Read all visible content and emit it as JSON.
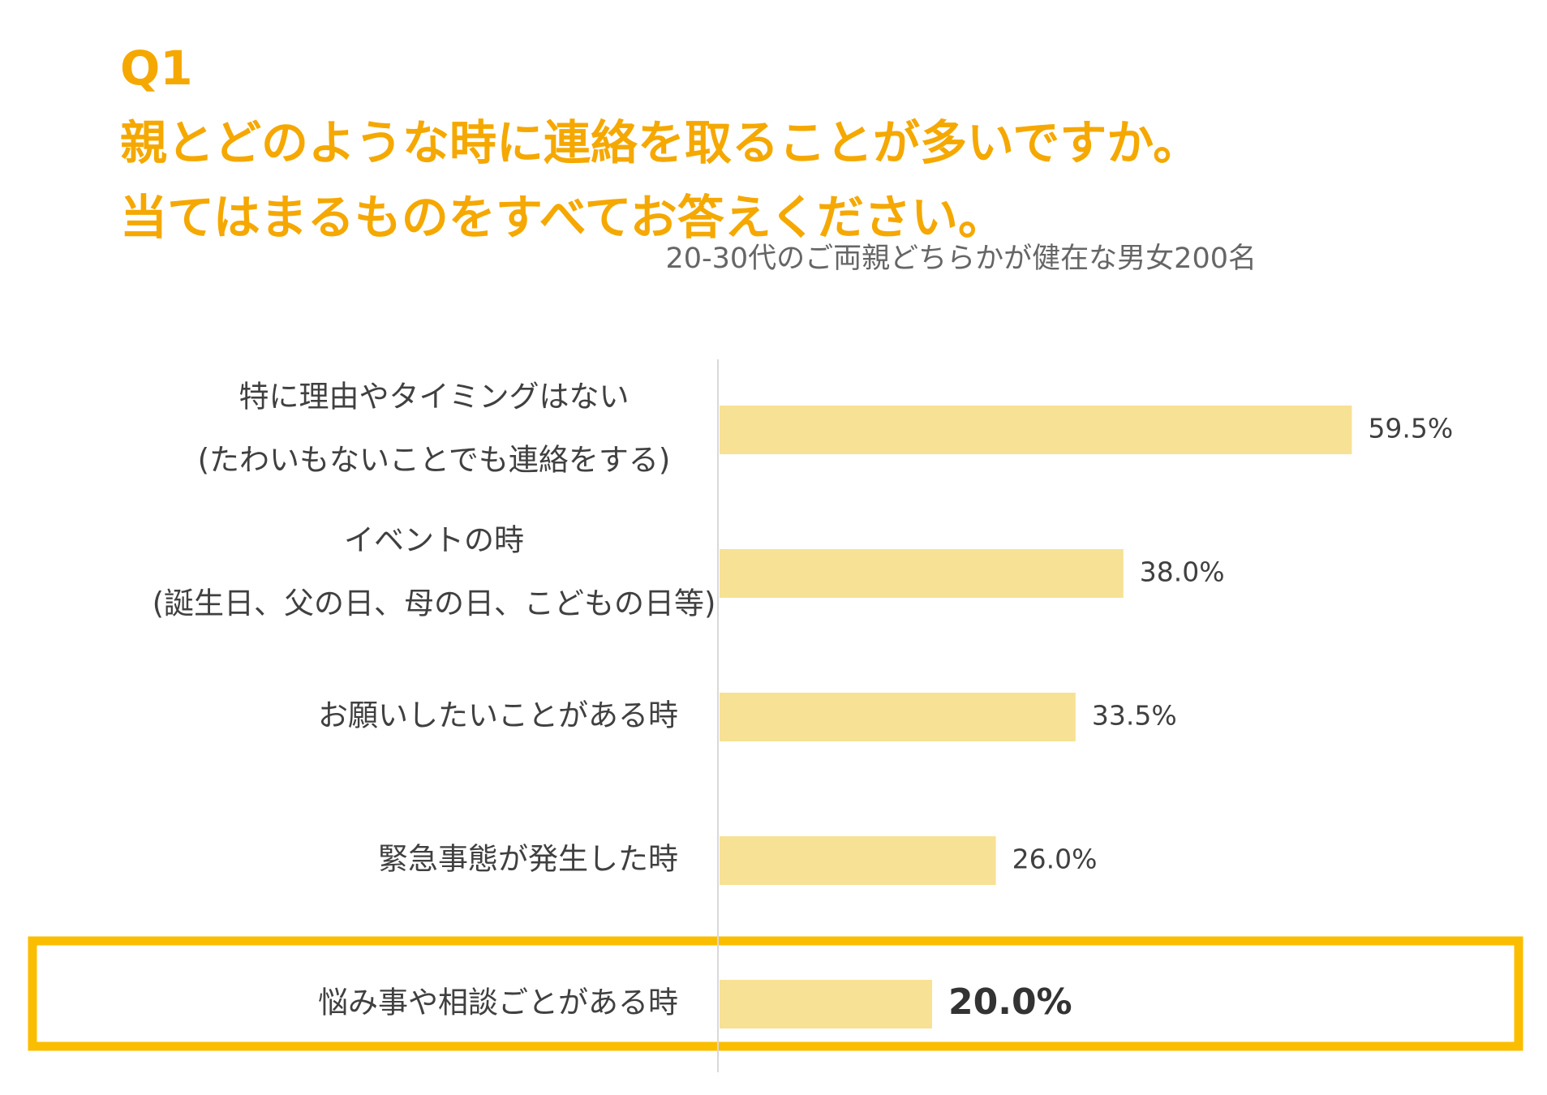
{
  "title": {
    "lines": [
      "Q1",
      "親とどのような時に連絡を取ることが多いですか。",
      "当てはまるものをすべてお答えください。"
    ]
  },
  "subtitle": "20-30代のご両親どちらかが健在な男女200名",
  "colors": {
    "title": "#f5a800",
    "bar": "#f7e194",
    "highlight_border": "#fbbd00",
    "axis": "#d9d9d9",
    "text": "#404040"
  },
  "chart_data": {
    "type": "bar",
    "orientation": "horizontal",
    "categories": [
      [
        "特に理由やタイミングはない",
        "(たわいもないことでも連絡をする)"
      ],
      [
        "イベントの時",
        "(誕生日、父の日、母の日、こどもの日等)"
      ],
      [
        "お願いしたいことがある時"
      ],
      [
        "緊急事態が発生した時"
      ],
      [
        "悩み事や相談ごとがある時"
      ]
    ],
    "values": [
      59.5,
      38.0,
      33.5,
      26.0,
      20.0
    ],
    "value_labels": [
      "59.5%",
      "38.0%",
      "33.5%",
      "26.0%",
      "20.0%"
    ],
    "unit": "%",
    "xlim": [
      0,
      100
    ],
    "highlighted_index": 4,
    "grid": false
  }
}
